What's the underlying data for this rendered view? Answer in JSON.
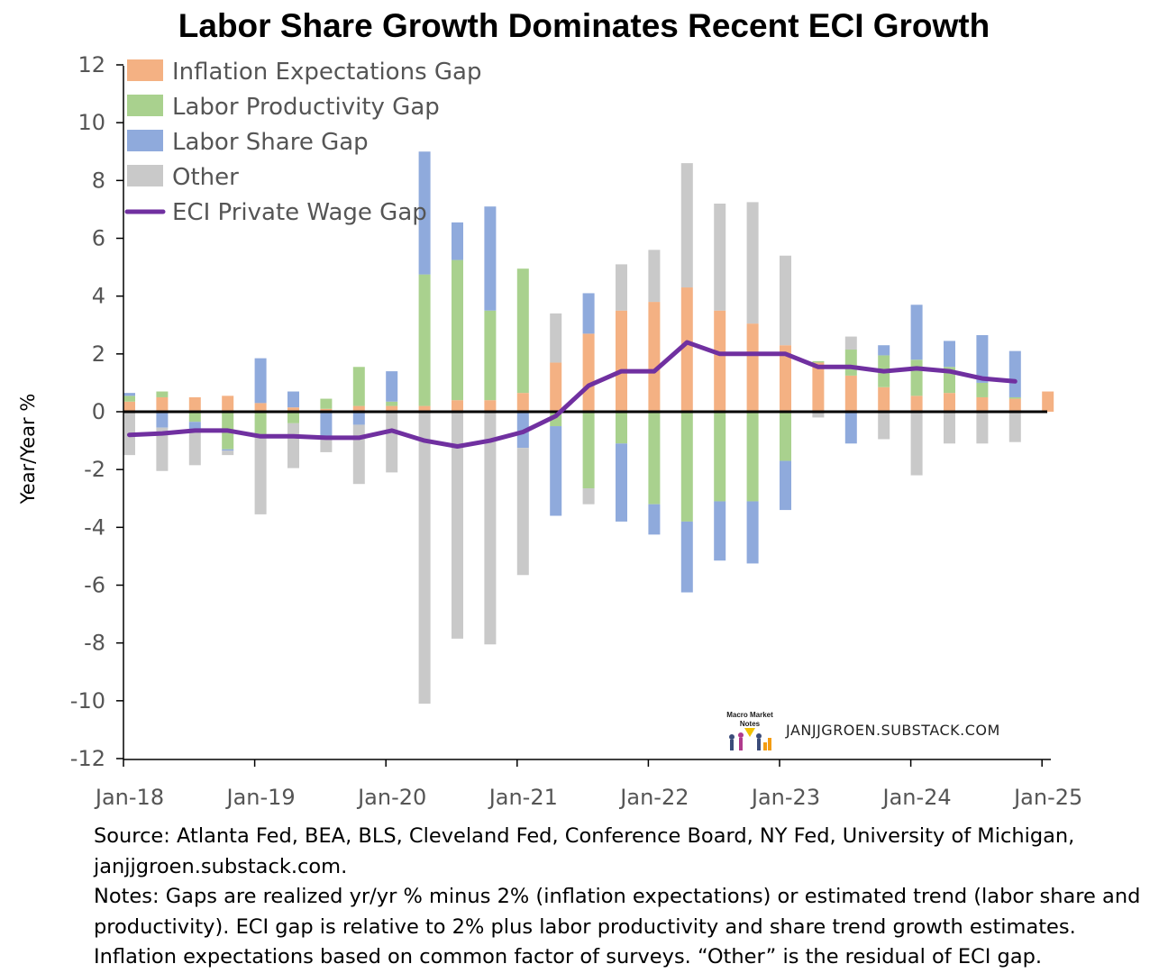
{
  "chart_data": {
    "type": "bar",
    "title": "Labor Share Growth Dominates Recent ECI Growth",
    "ylabel": "Year/Year %",
    "xlabel": "",
    "ylim": [
      -12,
      12
    ],
    "yticks": [
      12,
      10,
      8,
      6,
      4,
      2,
      0,
      -2,
      -4,
      -6,
      -8,
      -10,
      -12
    ],
    "xtick_labels": [
      "Jan-18",
      "Jan-19",
      "Jan-20",
      "Jan-21",
      "Jan-22",
      "Jan-23",
      "Jan-24",
      "Jan-25"
    ],
    "stacked": true,
    "grid": false,
    "legend_position": "top-left",
    "periods": [
      "2018Q1",
      "2018Q2",
      "2018Q3",
      "2018Q4",
      "2019Q1",
      "2019Q2",
      "2019Q3",
      "2019Q4",
      "2020Q1",
      "2020Q2",
      "2020Q3",
      "2020Q4",
      "2021Q1",
      "2021Q2",
      "2021Q3",
      "2021Q4",
      "2022Q1",
      "2022Q2",
      "2022Q3",
      "2022Q4",
      "2023Q1",
      "2023Q2",
      "2023Q3",
      "2023Q4",
      "2024Q1",
      "2024Q2",
      "2024Q3",
      "2024Q4",
      "2025Q1"
    ],
    "series": [
      {
        "name": "Inflation Expectations Gap",
        "type": "bar",
        "color": "#f4b183",
        "values": [
          0.35,
          0.5,
          0.5,
          0.55,
          0.3,
          0.15,
          0.1,
          0.2,
          0.2,
          0.2,
          0.4,
          0.4,
          0.65,
          1.7,
          2.7,
          3.5,
          3.8,
          4.3,
          3.5,
          3.05,
          2.3,
          1.7,
          1.25,
          0.85,
          0.55,
          0.65,
          0.5,
          0.45,
          0.7
        ]
      },
      {
        "name": "Labor Productivity Gap",
        "type": "bar",
        "color": "#a9d18e",
        "values": [
          0.2,
          0.2,
          -0.35,
          -1.3,
          -0.85,
          -0.4,
          0.35,
          1.35,
          0.15,
          4.55,
          4.85,
          3.1,
          4.3,
          -0.5,
          -2.65,
          -1.1,
          -3.2,
          -3.8,
          -3.1,
          -3.1,
          -1.7,
          0.05,
          0.9,
          1.1,
          1.25,
          0.9,
          0.5,
          0.05,
          0
        ]
      },
      {
        "name": "Labor Share Gap",
        "type": "bar",
        "color": "#8faadc",
        "values": [
          0.1,
          -0.55,
          -0.3,
          -0.05,
          1.55,
          0.55,
          -0.95,
          -0.45,
          1.05,
          4.25,
          1.3,
          3.6,
          -1.25,
          -3.1,
          1.4,
          -2.7,
          -1.05,
          -2.45,
          -2.05,
          -2.15,
          -1.7,
          0,
          -1.1,
          0.35,
          1.9,
          0.9,
          1.65,
          1.6,
          0
        ]
      },
      {
        "name": "Other",
        "type": "bar",
        "color": "#c9c9c9",
        "values": [
          -1.5,
          -1.5,
          -1.2,
          -0.15,
          -2.7,
          -1.55,
          -0.45,
          -2.05,
          -2.1,
          -10.1,
          -7.85,
          -8.05,
          -4.4,
          1.7,
          -0.55,
          1.6,
          1.8,
          4.3,
          3.7,
          4.2,
          3.1,
          -0.2,
          0.45,
          -0.95,
          -2.2,
          -1.1,
          -1.1,
          -1.05,
          0
        ]
      },
      {
        "name": "ECI Private Wage Gap",
        "type": "line",
        "color": "#7030a0",
        "values": [
          -0.8,
          -0.75,
          -0.65,
          -0.65,
          -0.85,
          -0.85,
          -0.9,
          -0.9,
          -0.65,
          -1.0,
          -1.2,
          -1.0,
          -0.7,
          -0.15,
          0.9,
          1.4,
          1.4,
          2.4,
          2.0,
          2.0,
          2.0,
          1.55,
          1.55,
          1.4,
          1.5,
          1.4,
          1.15,
          1.05,
          null
        ]
      }
    ]
  },
  "watermark": {
    "site": "JANJJGROEN.SUBSTACK.COM",
    "logo_text_1": "Macro Market",
    "logo_text_2": "Notes"
  },
  "footer": {
    "source": "Source: Atlanta Fed, BEA, BLS, Cleveland Fed, Conference Board, NY Fed, University of Michigan, janjjgroen.substack.com.",
    "notes": "Notes: Gaps are realized yr/yr % minus 2% (inflation expectations) or estimated trend (labor share and productivity). ECI gap is relative to 2% plus labor productivity and share trend growth estimates. Inflation expectations based on common factor of surveys. “Other” is the residual of ECI gap."
  }
}
